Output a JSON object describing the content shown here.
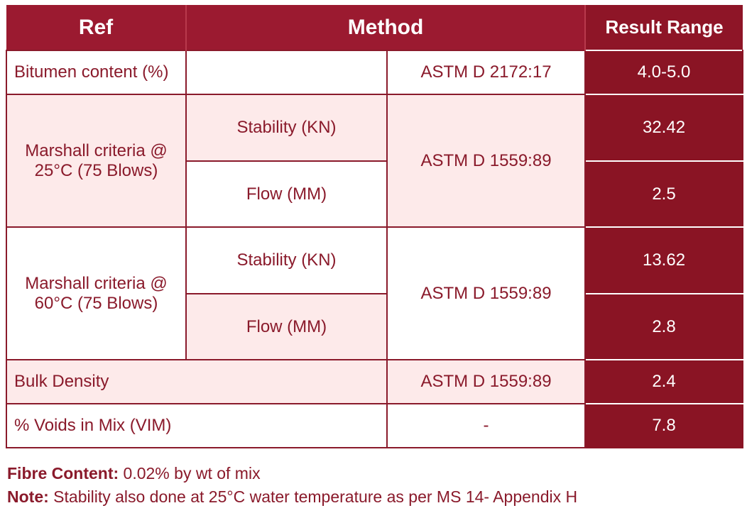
{
  "header": {
    "ref": "Ref",
    "method": "Method",
    "result_range": "Result Range"
  },
  "rows": {
    "bitumen": {
      "ref": "Bitumen content (%)",
      "sub": "",
      "method": "ASTM D 2172:17",
      "result": "4.0-5.0"
    },
    "marshall25": {
      "ref": "Marshall criteria @ 25°C (75 Blows)",
      "stability_label": "Stability (KN)",
      "flow_label": "Flow (MM)",
      "method": "ASTM D 1559:89",
      "stability_result": "32.42",
      "flow_result": "2.5"
    },
    "marshall60": {
      "ref": "Marshall criteria @ 60°C (75 Blows)",
      "stability_label": "Stability (KN)",
      "flow_label": "Flow (MM)",
      "method": "ASTM D 1559:89",
      "stability_result": "13.62",
      "flow_result": "2.8"
    },
    "bulk_density": {
      "ref": "Bulk Density",
      "method": "ASTM D 1559:89",
      "result": "2.4"
    },
    "voids": {
      "ref": "% Voids in Mix (VIM)",
      "method": "-",
      "result": "7.8"
    }
  },
  "notes": {
    "fibre_label": "Fibre Content:",
    "fibre_text": " 0.02% by wt of mix",
    "note_label": "Note:",
    "note_text": " Stability also done at 25°C water temperature as per MS 14- Appendix H"
  }
}
